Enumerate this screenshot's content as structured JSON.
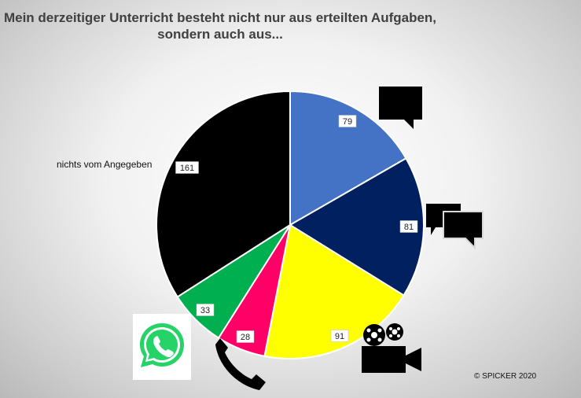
{
  "chart_data": {
    "type": "pie",
    "title": [
      "Mein derzeitiger Unterricht besteht nicht nur aus erteilten Aufgaben,",
      "sondern auch aus..."
    ],
    "start_angle_deg": 0,
    "direction": "clockwise",
    "slices": [
      {
        "value": 79,
        "color": "#4472c4",
        "icon": "speech-bubble-icon"
      },
      {
        "value": 81,
        "color": "#002060",
        "icon": "chat-bubbles-icon"
      },
      {
        "value": 91,
        "color": "#ffff00",
        "icon": "video-camera-icon"
      },
      {
        "value": 28,
        "color": "#ff0066",
        "icon": "phone-icon"
      },
      {
        "value": 33,
        "color": "#00b050",
        "icon": "whatsapp-icon"
      },
      {
        "value": 161,
        "color": "#000000",
        "label": "nichts vom Angegeben"
      }
    ]
  },
  "footer": {
    "copyright": "© SPICKER 2020"
  }
}
